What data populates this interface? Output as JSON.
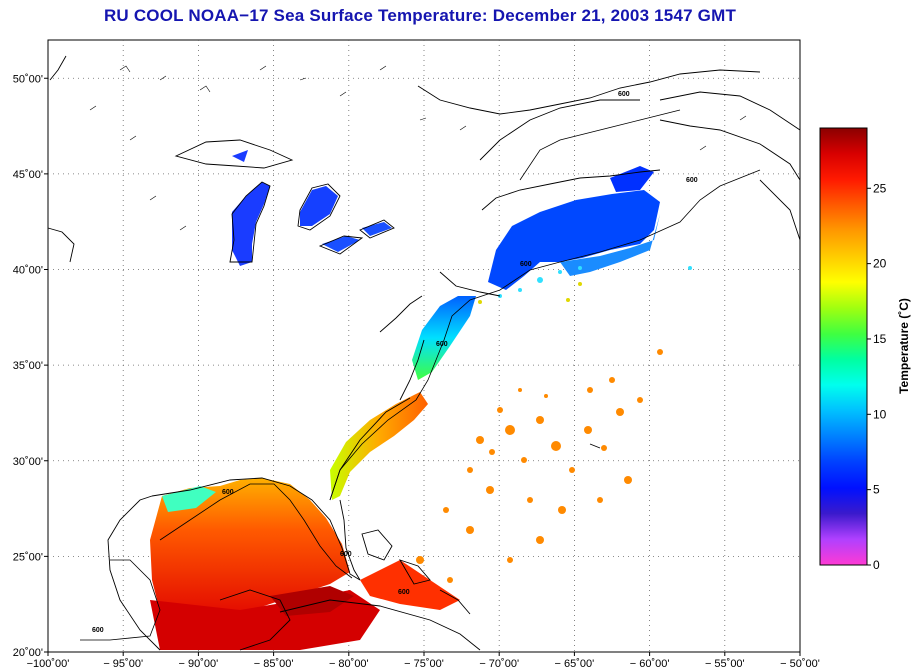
{
  "title": "RU COOL  NOAA−17  Sea Surface Temperature:  December 21, 2003 1547 GMT",
  "map": {
    "lon_range": [
      -100,
      -50
    ],
    "lat_range": [
      20,
      52
    ],
    "lat_ticks": [
      {
        "value": 20,
        "label": "20˚00'"
      },
      {
        "value": 25,
        "label": "25˚00'"
      },
      {
        "value": 30,
        "label": "30˚00'"
      },
      {
        "value": 35,
        "label": "35˚00'"
      },
      {
        "value": 40,
        "label": "40˚00'"
      },
      {
        "value": 45,
        "label": "45˚00'"
      },
      {
        "value": 50,
        "label": "50˚00'"
      }
    ],
    "lon_ticks": [
      {
        "value": -100,
        "label": "−100˚00'"
      },
      {
        "value": -95,
        "label": "− 95˚00'"
      },
      {
        "value": -90,
        "label": "− 90˚00'"
      },
      {
        "value": -85,
        "label": "− 85˚00'"
      },
      {
        "value": -80,
        "label": "− 80˚00'"
      },
      {
        "value": -75,
        "label": "− 75˚00'"
      },
      {
        "value": -70,
        "label": "− 70˚00'"
      },
      {
        "value": -65,
        "label": "− 65˚00'"
      },
      {
        "value": -60,
        "label": "− 60˚00'"
      },
      {
        "value": -55,
        "label": "− 55˚00'"
      },
      {
        "value": -50,
        "label": "− 50˚00'"
      }
    ],
    "grid": "dotted",
    "isobath_label": "600"
  },
  "colorbar": {
    "title": "Temperature (˚C)",
    "range": [
      0,
      29
    ],
    "ticks": [
      {
        "value": 0,
        "label": "0"
      },
      {
        "value": 5,
        "label": "5"
      },
      {
        "value": 10,
        "label": "10"
      },
      {
        "value": 15,
        "label": "15"
      },
      {
        "value": 20,
        "label": "20"
      },
      {
        "value": 25,
        "label": "25"
      }
    ],
    "colors": [
      "#ff3ad4",
      "#b040ff",
      "#3a1acc",
      "#0010ff",
      "#0040ff",
      "#0080ff",
      "#00c0ff",
      "#00ffee",
      "#00ffa0",
      "#40ff40",
      "#a0ff10",
      "#ffff00",
      "#ffcc00",
      "#ff9900",
      "#ff5a00",
      "#ff1a00",
      "#d80000",
      "#8b0000"
    ]
  }
}
